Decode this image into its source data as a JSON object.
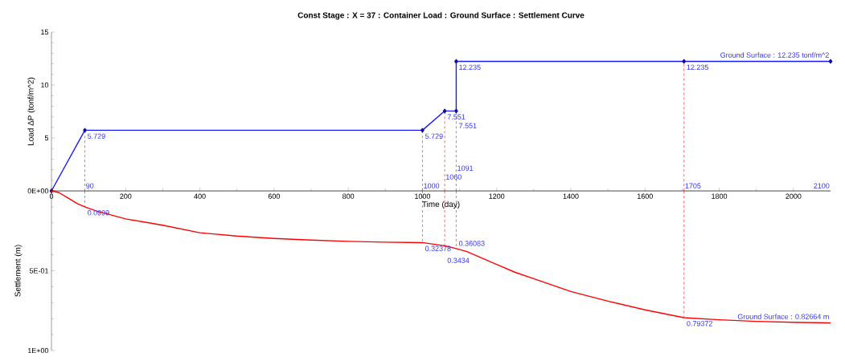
{
  "chart_data": [
    {
      "type": "line",
      "title": "Const Stage : X = 37 : Container Load : Ground Surface : Settlement Curve",
      "xlabel": "Time (day)",
      "ylabel": "Load ΔP (tonf/m^2)",
      "series": [
        {
          "name": "Ground Surface : 12.235 tonf/m^2",
          "color": "#1a1aff",
          "x": [
            0,
            90,
            1000,
            1060,
            1091,
            1091,
            1705,
            2100
          ],
          "values": [
            0,
            5.729,
            5.729,
            7.551,
            7.551,
            12.235,
            12.235,
            12.235
          ],
          "value_labels": [
            null,
            "5.729",
            "5.729",
            "7.551",
            "7.551",
            "12.235",
            "12.235",
            null
          ]
        }
      ],
      "xlim": [
        0,
        2100
      ],
      "xticks": [
        0,
        200,
        400,
        600,
        800,
        1000,
        1200,
        1400,
        1600,
        1800,
        2000
      ],
      "ylim": [
        0,
        15
      ],
      "yticks": [
        {
          "value": 0,
          "label": null
        },
        5,
        10,
        15
      ],
      "marker": "diamond",
      "grid": false,
      "ref_lines": [
        {
          "axis": "x",
          "value": 90,
          "color": "#ff0000",
          "line_style": "dashed"
        },
        {
          "axis": "x",
          "value": 1000,
          "color": "#ff0000",
          "line_style": "dashed"
        },
        {
          "axis": "x",
          "value": 1060,
          "color": "#ff0000",
          "line_style": "dashed"
        },
        {
          "axis": "x",
          "value": 1091,
          "color": "#ff0000",
          "line_style": "dashed"
        },
        {
          "axis": "x",
          "value": 1705,
          "color": "#ff0000",
          "line_style": "dashed"
        }
      ],
      "annotations": [
        {
          "text": "90",
          "x": 90,
          "y": 0
        },
        {
          "text": "1000",
          "x": 1000,
          "y": 0
        },
        {
          "text": "1060",
          "x": 1060,
          "y": 0
        },
        {
          "text": "1091",
          "x": 1091,
          "y": 0
        },
        {
          "text": "1705",
          "x": 1705,
          "y": 0
        },
        "2100"
      ]
    },
    {
      "type": "line",
      "ylabel": "Settlement (m)",
      "series": [
        {
          "name": "Ground Surface : 0.82664 m",
          "color": "#ff0000",
          "x": [
            0,
            20,
            45,
            70,
            90,
            120,
            160,
            200,
            250,
            300,
            400,
            500,
            600,
            700,
            800,
            900,
            1000,
            1060,
            1091,
            1120,
            1160,
            1200,
            1250,
            1300,
            1400,
            1500,
            1600,
            1705,
            1800,
            1900,
            2000,
            2100
          ],
          "values": [
            0,
            0.01,
            0.045,
            0.08,
            0.0999,
            0.125,
            0.15,
            0.175,
            0.195,
            0.215,
            0.262,
            0.283,
            0.298,
            0.308,
            0.316,
            0.321,
            0.32378,
            0.3434,
            0.36083,
            0.38,
            0.42,
            0.46,
            0.51,
            0.55,
            0.63,
            0.69,
            0.745,
            0.79372,
            0.807,
            0.817,
            0.823,
            0.82664
          ],
          "value_labels": [
            null,
            null,
            null,
            null,
            "0.0999",
            null,
            null,
            null,
            null,
            null,
            null,
            null,
            null,
            null,
            null,
            null,
            "0.32378",
            "0.3434",
            "0.36083",
            null,
            null,
            null,
            null,
            null,
            null,
            null,
            null,
            "0.79372",
            null,
            null,
            null,
            null
          ]
        }
      ],
      "xlim": [
        0,
        2100
      ],
      "ylim": [
        1,
        0
      ],
      "yticks": [
        {
          "value": 0,
          "label": "0E+00"
        },
        {
          "value": 0.5,
          "label": "5E-01"
        },
        {
          "value": 1,
          "label": "1E+00"
        }
      ],
      "tick_labels": "y",
      "marker": "none",
      "grid": false,
      "ref_lines": [
        {
          "axis": "x",
          "value": 90,
          "color": "#ff0000",
          "line_style": "dashed"
        },
        {
          "axis": "x",
          "value": 1000,
          "color": "#ff0000",
          "line_style": "dashed"
        },
        {
          "axis": "x",
          "value": 1060,
          "color": "#ff0000",
          "line_style": "dashed"
        },
        {
          "axis": "x",
          "value": 1091,
          "color": "#ff0000",
          "line_style": "dashed"
        },
        {
          "axis": "x",
          "value": 1705,
          "color": "#ff0000",
          "line_style": "dashed"
        }
      ]
    }
  ]
}
